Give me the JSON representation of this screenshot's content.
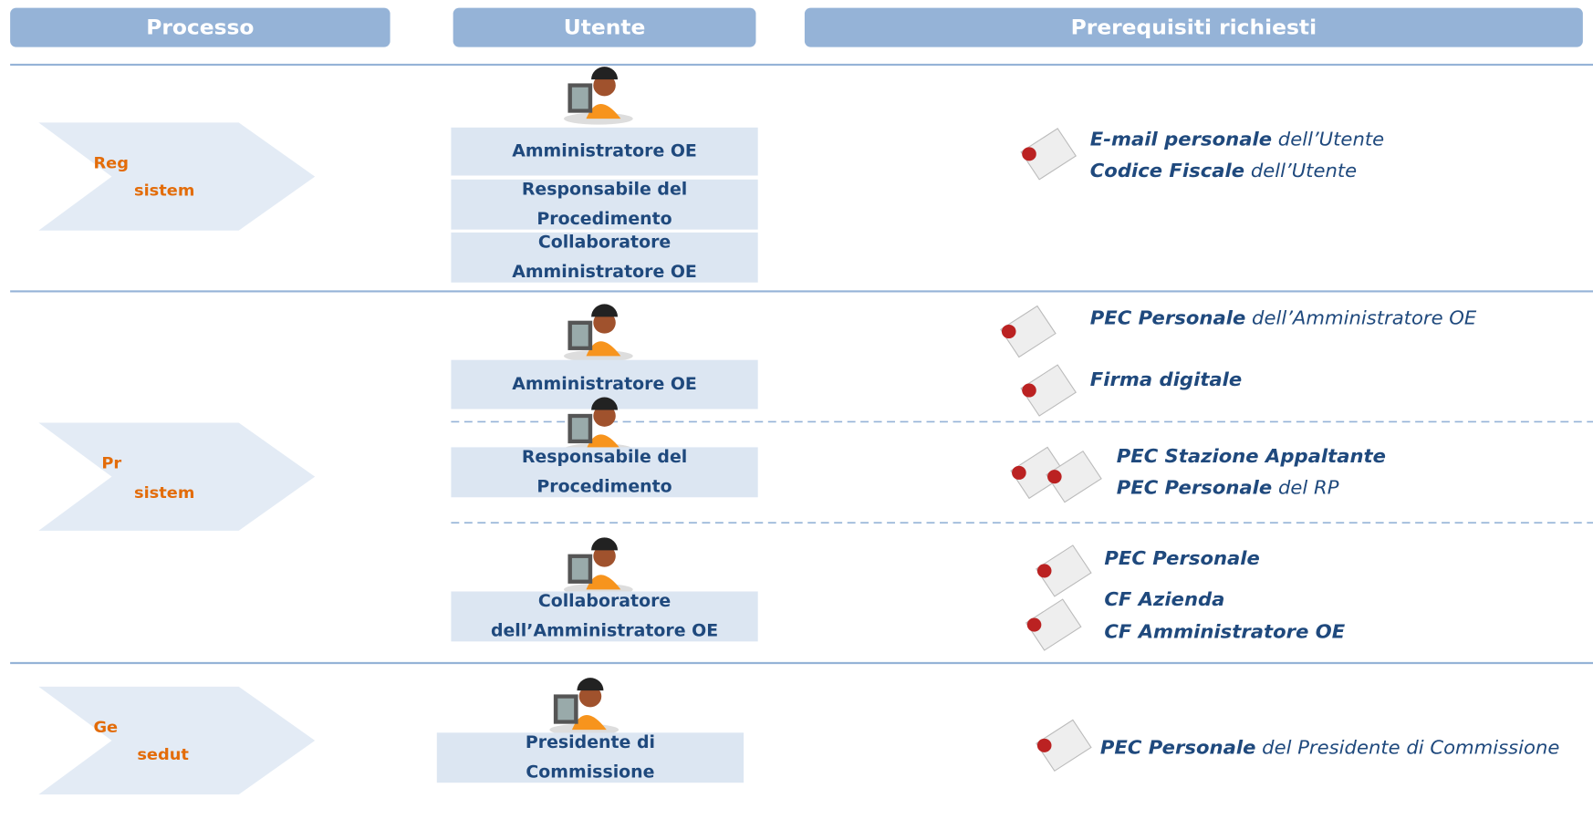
{
  "header": {
    "columns": [
      "Processo",
      "Utente",
      "Prerequisiti richiesti"
    ]
  },
  "sections": [
    {
      "process": [
        "Reg",
        "sistem"
      ],
      "items": [
        {
          "users": [
            {
              "lines": [
                "Amministratore OE"
              ]
            },
            {
              "lines": [
                "Responsabile del",
                "Procedimento"
              ]
            },
            {
              "lines": [
                "Collaboratore",
                "Amministratore OE"
              ]
            }
          ],
          "prerequisites": [
            {
              "bold": "E-mail personale",
              "text": " dell’Utente"
            },
            {
              "bold": "Codice Fiscale",
              "text": " dell’Utente"
            }
          ]
        }
      ]
    },
    {
      "process": [
        "Pr",
        "sistem"
      ],
      "items": [
        {
          "users": [
            {
              "lines": [
                "Amministratore OE"
              ]
            }
          ],
          "prerequisites": [
            {
              "bold": "PEC Personale",
              "text": " dell’Amministratore OE"
            },
            {
              "bold": "Firma digitale"
            }
          ]
        },
        {
          "users": [
            {
              "lines": [
                "Responsabile del",
                "Procedimento"
              ]
            }
          ],
          "prerequisites": [
            {
              "bold": "PEC Stazione Appaltante"
            },
            {
              "bold": "PEC Personale",
              "text": " del RP"
            }
          ]
        },
        {
          "users": [
            {
              "lines": [
                "Collaboratore",
                "dell’Amministratore OE"
              ]
            }
          ],
          "prerequisites": [
            {
              "bold": "PEC Personale"
            },
            {
              "bold": "CF Azienda"
            },
            {
              "bold": "CF Amministratore OE"
            }
          ]
        }
      ]
    },
    {
      "process": [
        "Ge",
        "sedut"
      ],
      "items": [
        {
          "users": [
            {
              "lines": [
                "Presidente di",
                "Commissione"
              ]
            }
          ],
          "prerequisites": [
            {
              "bold": "PEC Personale",
              "text": " del Presidente di Commissione"
            }
          ]
        }
      ]
    }
  ]
}
